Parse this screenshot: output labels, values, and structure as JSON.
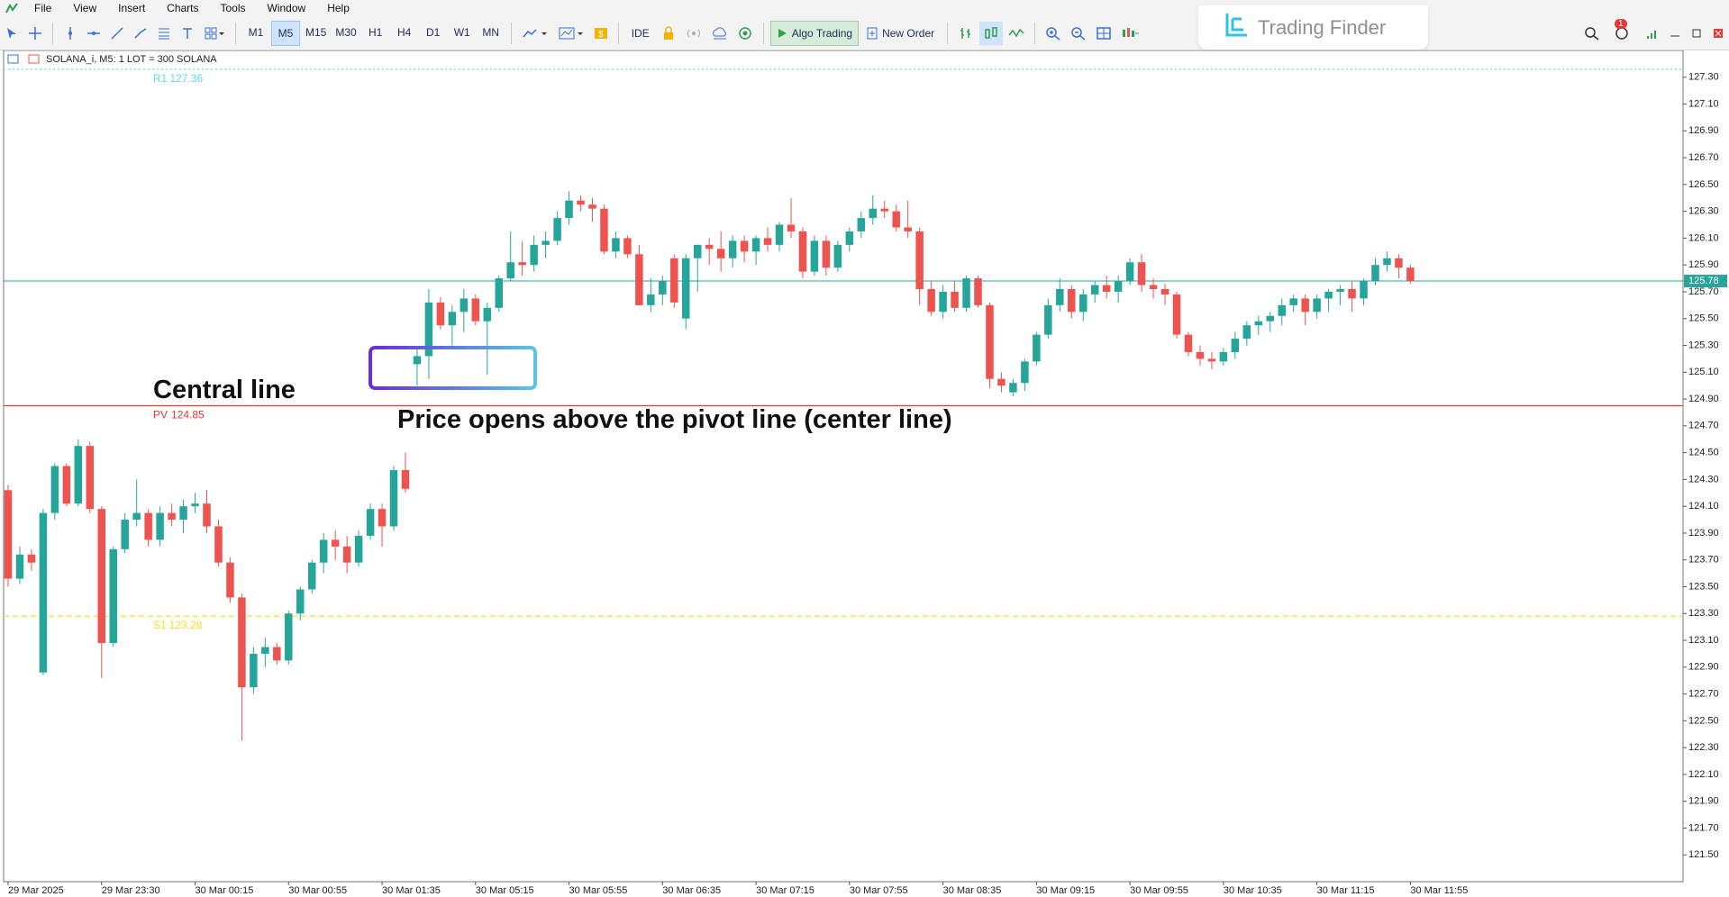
{
  "menu": [
    "File",
    "View",
    "Insert",
    "Charts",
    "Tools",
    "Window",
    "Help"
  ],
  "toolbar": {
    "timeframes": [
      "M1",
      "M5",
      "M15",
      "M30",
      "H1",
      "H4",
      "D1",
      "W1",
      "MN"
    ],
    "active_timeframe": "M5",
    "ide": "IDE",
    "algo_trading": "Algo Trading",
    "new_order": "New Order"
  },
  "brand": "Trading Finder",
  "notifications": 1,
  "annotations": [
    "Central line",
    "Price opens above the pivot line (center line)"
  ],
  "chart_data": {
    "type": "candlestick",
    "title": "SOLANA_i, M5:  1 LOT = 300 SOLANA",
    "up_color": "#26a69a",
    "down_color": "#ef5350",
    "grid": false,
    "ylim": [
      121.3,
      127.5
    ],
    "yticks": [
      {
        "value": 127.3,
        "label": "127.30"
      },
      {
        "value": 127.1,
        "label": "127.10"
      },
      {
        "value": 126.9,
        "label": "126.90"
      },
      {
        "value": 126.7,
        "label": "126.70"
      },
      {
        "value": 126.5,
        "label": "126.50"
      },
      {
        "value": 126.3,
        "label": "126.30"
      },
      {
        "value": 126.1,
        "label": "126.10"
      },
      {
        "value": 125.9,
        "label": "125.90"
      },
      {
        "value": 125.7,
        "label": "125.70"
      },
      {
        "value": 125.5,
        "label": "125.50"
      },
      {
        "value": 125.3,
        "label": "125.30"
      },
      {
        "value": 125.1,
        "label": "125.10"
      },
      {
        "value": 124.9,
        "label": "124.90"
      },
      {
        "value": 124.7,
        "label": "124.70"
      },
      {
        "value": 124.5,
        "label": "124.50"
      },
      {
        "value": 124.3,
        "label": "124.30"
      },
      {
        "value": 124.1,
        "label": "124.10"
      },
      {
        "value": 123.9,
        "label": "123.90"
      },
      {
        "value": 123.7,
        "label": "123.70"
      },
      {
        "value": 123.5,
        "label": "123.50"
      },
      {
        "value": 123.3,
        "label": "123.30"
      },
      {
        "value": 123.1,
        "label": "123.10"
      },
      {
        "value": 122.9,
        "label": "122.90"
      },
      {
        "value": 122.7,
        "label": "122.70"
      },
      {
        "value": 122.5,
        "label": "122.50"
      },
      {
        "value": 122.3,
        "label": "122.30"
      },
      {
        "value": 122.1,
        "label": "122.10"
      },
      {
        "value": 121.9,
        "label": "121.90"
      },
      {
        "value": 121.7,
        "label": "121.70"
      },
      {
        "value": 121.5,
        "label": "121.50"
      }
    ],
    "categories": [
      "29 Mar 2025",
      null,
      null,
      null,
      null,
      null,
      null,
      null,
      "29 Mar 23:30",
      null,
      null,
      null,
      null,
      null,
      null,
      null,
      "30 Mar 00:15",
      null,
      null,
      null,
      null,
      null,
      null,
      null,
      "30 Mar 00:55",
      null,
      null,
      null,
      null,
      null,
      null,
      null,
      "30 Mar 01:35",
      null,
      null,
      null,
      null,
      null,
      null,
      null,
      "30 Mar 05:15",
      null,
      null,
      null,
      null,
      null,
      null,
      null,
      "30 Mar 05:55",
      null,
      null,
      null,
      null,
      null,
      null,
      null,
      "30 Mar 06:35",
      null,
      null,
      null,
      null,
      null,
      null,
      null,
      "30 Mar 07:15",
      null,
      null,
      null,
      null,
      null,
      null,
      null,
      "30 Mar 07:55",
      null,
      null,
      null,
      null,
      null,
      null,
      null,
      "30 Mar 08:35",
      null,
      null,
      null,
      null,
      null,
      null,
      null,
      "30 Mar 09:15",
      null,
      null,
      null,
      null,
      null,
      null,
      null,
      "30 Mar 09:55",
      null,
      null,
      null,
      null,
      null,
      null,
      null,
      "30 Mar 10:35",
      null,
      null,
      null,
      null,
      null,
      null,
      null,
      "30 Mar 11:15",
      null,
      null,
      null,
      null,
      null,
      null,
      null,
      "30 Mar 11:55"
    ],
    "open": [
      124.22,
      123.56,
      123.74,
      122.86,
      124.05,
      124.4,
      124.12,
      124.55,
      124.08,
      123.08,
      123.78,
      124.0,
      124.05,
      123.85,
      124.05,
      124.0,
      124.1,
      124.12,
      123.95,
      123.68,
      123.42,
      122.75,
      123.0,
      123.05,
      122.95,
      123.3,
      123.48,
      123.68,
      123.85,
      123.8,
      123.68,
      123.88,
      124.08,
      123.95,
      124.37,
      125.16,
      125.22,
      125.62,
      125.45,
      125.55,
      125.65,
      125.48,
      125.58,
      125.8,
      125.92,
      125.9,
      126.05,
      126.08,
      126.25,
      126.38,
      126.35,
      126.32,
      126.0,
      126.1,
      125.98,
      125.6,
      125.68,
      125.95,
      125.5,
      125.95,
      126.05,
      126.02,
      125.95,
      126.08,
      126.0,
      126.1,
      126.05,
      126.2,
      126.15,
      125.85,
      126.08,
      125.88,
      126.05,
      126.15,
      126.25,
      126.32,
      126.3,
      126.18,
      126.15,
      125.72,
      125.55,
      125.7,
      125.58,
      125.8,
      125.6,
      125.05,
      124.95,
      125.02,
      125.18,
      125.38,
      125.6,
      125.72,
      125.55,
      125.68,
      125.75,
      125.7,
      125.78,
      125.92,
      125.75,
      125.72,
      125.68,
      125.38,
      125.25,
      125.2,
      125.18,
      125.25,
      125.35,
      125.45,
      125.48,
      125.52,
      125.6,
      125.65,
      125.55,
      125.65,
      125.7,
      125.72,
      125.65,
      125.78,
      125.9,
      125.95,
      125.88
    ],
    "high": [
      124.26,
      123.8,
      123.78,
      124.08,
      124.42,
      124.42,
      124.6,
      124.58,
      124.1,
      123.8,
      124.05,
      124.3,
      124.08,
      124.1,
      124.12,
      124.15,
      124.2,
      124.22,
      124.0,
      123.72,
      123.45,
      123.05,
      123.12,
      123.08,
      123.32,
      123.5,
      123.7,
      123.9,
      123.92,
      123.88,
      123.92,
      124.12,
      124.12,
      124.4,
      124.5,
      125.28,
      125.72,
      125.66,
      125.6,
      125.72,
      125.68,
      125.62,
      125.82,
      126.15,
      126.08,
      126.12,
      126.15,
      126.3,
      126.45,
      126.42,
      126.4,
      126.35,
      126.15,
      126.12,
      126.05,
      125.8,
      125.82,
      125.98,
      125.98,
      126.05,
      126.1,
      126.15,
      126.12,
      126.12,
      126.12,
      126.18,
      126.22,
      126.4,
      126.18,
      126.12,
      126.12,
      126.08,
      126.18,
      126.3,
      126.42,
      126.38,
      126.35,
      126.38,
      126.18,
      125.78,
      125.75,
      125.78,
      125.82,
      125.82,
      125.62,
      125.1,
      125.05,
      125.2,
      125.4,
      125.65,
      125.8,
      125.75,
      125.72,
      125.78,
      125.82,
      125.82,
      125.95,
      125.98,
      125.8,
      125.76,
      125.7,
      125.4,
      125.3,
      125.25,
      125.28,
      125.4,
      125.48,
      125.52,
      125.55,
      125.65,
      125.68,
      125.68,
      125.68,
      125.72,
      125.75,
      125.78,
      125.8,
      125.95,
      126.0,
      125.98,
      125.9
    ],
    "low": [
      123.5,
      123.52,
      123.62,
      122.84,
      124.0,
      124.1,
      124.1,
      124.05,
      122.82,
      123.05,
      123.75,
      123.95,
      123.8,
      123.8,
      123.95,
      123.9,
      124.05,
      123.9,
      123.65,
      123.38,
      122.35,
      122.7,
      122.9,
      122.92,
      122.92,
      123.25,
      123.45,
      123.6,
      123.7,
      123.6,
      123.65,
      123.85,
      123.8,
      123.92,
      124.2,
      125.0,
      125.05,
      125.42,
      125.3,
      125.4,
      125.45,
      125.08,
      125.55,
      125.78,
      125.82,
      125.85,
      125.95,
      126.05,
      126.2,
      126.3,
      126.22,
      125.98,
      125.95,
      125.95,
      125.6,
      125.55,
      125.6,
      125.58,
      125.42,
      125.7,
      125.9,
      125.85,
      125.88,
      125.92,
      125.9,
      126.0,
      126.0,
      126.1,
      125.8,
      125.82,
      125.82,
      125.85,
      126.0,
      126.1,
      126.2,
      126.25,
      126.15,
      126.1,
      125.6,
      125.52,
      125.5,
      125.55,
      125.55,
      125.58,
      124.98,
      124.95,
      124.92,
      124.96,
      125.15,
      125.35,
      125.55,
      125.5,
      125.48,
      125.62,
      125.65,
      125.62,
      125.75,
      125.7,
      125.65,
      125.6,
      125.35,
      125.22,
      125.15,
      125.12,
      125.15,
      125.2,
      125.3,
      125.38,
      125.4,
      125.45,
      125.55,
      125.45,
      125.5,
      125.55,
      125.6,
      125.55,
      125.6,
      125.75,
      125.85,
      125.8,
      125.76
    ],
    "close": [
      123.56,
      123.74,
      123.68,
      124.05,
      124.4,
      124.12,
      124.55,
      124.08,
      123.08,
      123.78,
      124.0,
      124.05,
      123.85,
      124.05,
      124.0,
      124.1,
      124.12,
      123.95,
      123.68,
      123.42,
      122.75,
      123.0,
      123.05,
      122.95,
      123.3,
      123.48,
      123.68,
      123.85,
      123.8,
      123.68,
      123.88,
      124.08,
      123.95,
      124.37,
      124.23,
      125.22,
      125.62,
      125.45,
      125.55,
      125.65,
      125.48,
      125.58,
      125.8,
      125.92,
      125.9,
      126.05,
      126.08,
      126.25,
      126.38,
      126.35,
      126.32,
      126.0,
      126.1,
      125.98,
      125.6,
      125.68,
      125.78,
      125.62,
      125.95,
      126.05,
      126.02,
      125.95,
      126.08,
      126.0,
      126.1,
      126.05,
      126.2,
      126.15,
      125.85,
      126.08,
      125.88,
      126.05,
      126.15,
      126.25,
      126.32,
      126.3,
      126.18,
      126.15,
      125.72,
      125.55,
      125.7,
      125.58,
      125.8,
      125.6,
      125.05,
      125.0,
      125.02,
      125.18,
      125.38,
      125.6,
      125.72,
      125.55,
      125.68,
      125.75,
      125.7,
      125.78,
      125.92,
      125.75,
      125.72,
      125.68,
      125.38,
      125.25,
      125.2,
      125.18,
      125.25,
      125.35,
      125.45,
      125.48,
      125.52,
      125.6,
      125.65,
      125.55,
      125.65,
      125.7,
      125.72,
      125.65,
      125.78,
      125.9,
      125.95,
      125.88,
      125.78
    ],
    "levels": [
      {
        "name": "R1",
        "value": 127.36,
        "color": "#5fd8e8",
        "style": "dotted"
      },
      {
        "name": "PV",
        "value": 124.85,
        "color": "#e53935",
        "style": "solid"
      },
      {
        "name": "S1",
        "value": 123.28,
        "color": "#f2e22a",
        "style": "dashed"
      }
    ],
    "last_price": 125.78,
    "last_price_color": "#26a69a"
  }
}
